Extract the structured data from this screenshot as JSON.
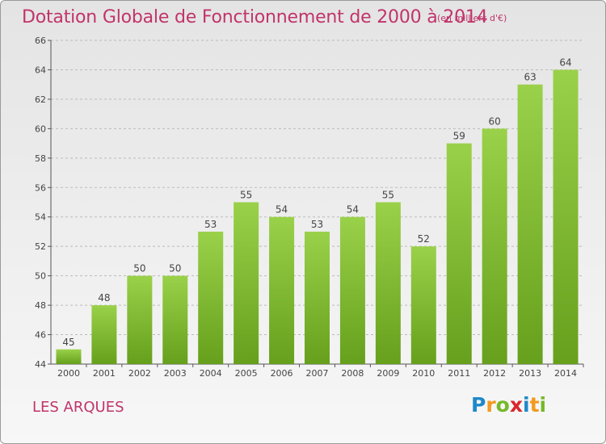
{
  "header": {
    "title": "Dotation Globale de Fonctionnement de 2000 à 2014",
    "subtitle": "(en milliers d'€)"
  },
  "footer": {
    "town": "LES ARQUES",
    "logo_letters": [
      {
        "char": "P",
        "color": "#1f88c9"
      },
      {
        "char": "r",
        "color": "#f39a1e"
      },
      {
        "char": "o",
        "color": "#76b82a"
      },
      {
        "char": "x",
        "color": "#d9262d"
      },
      {
        "char": "i",
        "color": "#1f88c9"
      },
      {
        "char": "t",
        "color": "#f39a1e"
      },
      {
        "char": "i",
        "color": "#76b82a"
      }
    ]
  },
  "colors": {
    "title": "#c1346b",
    "bar_light": "#9ad14a",
    "bar_dark": "#66a01c",
    "grid": "#bbbbbb",
    "axis": "#555555"
  },
  "chart_data": {
    "type": "bar",
    "title": "Dotation Globale de Fonctionnement de 2000 à 2014",
    "subtitle": "(en milliers d'€)",
    "categories": [
      "2000",
      "2001",
      "2002",
      "2003",
      "2004",
      "2005",
      "2006",
      "2007",
      "2008",
      "2009",
      "2010",
      "2011",
      "2012",
      "2013",
      "2014"
    ],
    "values": [
      45,
      48,
      50,
      50,
      53,
      55,
      54,
      53,
      54,
      55,
      52,
      59,
      60,
      63,
      64
    ],
    "ylim": [
      44,
      66
    ],
    "yticks": [
      44,
      46,
      48,
      50,
      52,
      54,
      56,
      58,
      60,
      62,
      64,
      66
    ],
    "grid": "horizontal-dashed",
    "legend": "none"
  }
}
